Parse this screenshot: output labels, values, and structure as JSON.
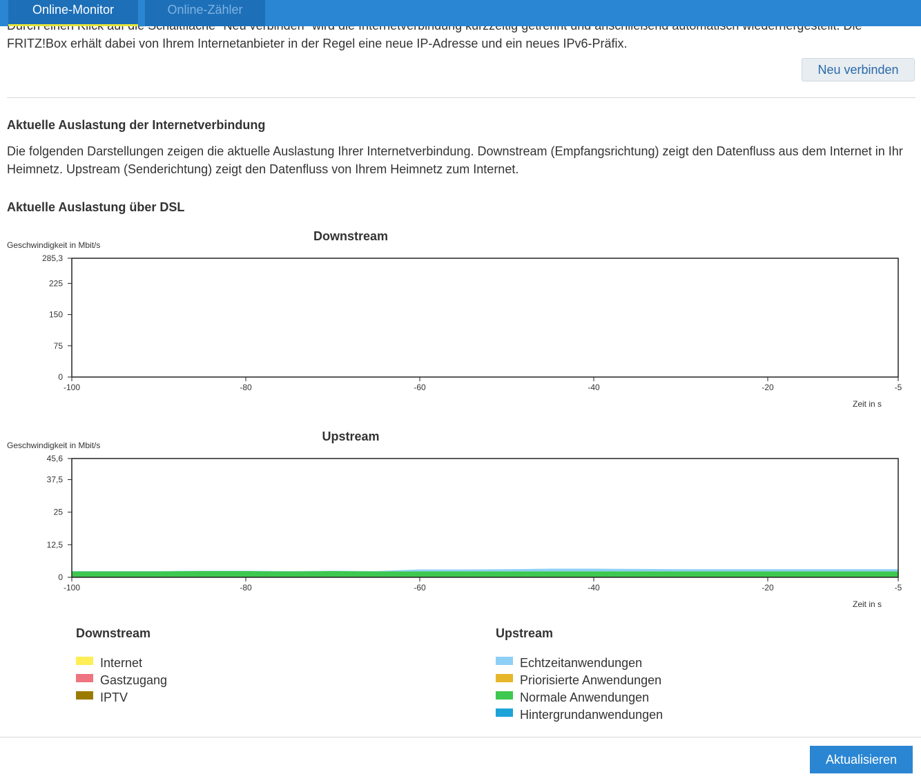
{
  "tabs": [
    {
      "label": "Online-Monitor",
      "active": true
    },
    {
      "label": "Online-Zähler",
      "active": false
    }
  ],
  "intro_text": "Durch einen Klick auf die Schaltfläche \"Neu verbinden\" wird die Internetverbindung kurzzeitig getrennt und anschließend automatisch wiederhergestellt. Die FRITZ!Box erhält dabei von Ihrem Internetanbieter in der Regel eine neue IP-Adresse und ein neues IPv6-Präfix.",
  "reconnect_button": "Neu verbinden",
  "section_title": "Aktuelle Auslastung der Internetverbindung",
  "section_desc": "Die folgenden Darstellungen zeigen die aktuelle Auslastung Ihrer Internetverbindung. Downstream (Empfangsrichtung) zeigt den Datenfluss aus dem Internet in Ihr Heimnetz. Upstream (Senderichtung) zeigt den Datenfluss von Ihrem Heimnetz zum Internet.",
  "dsl_title": "Aktuelle Auslastung über DSL",
  "chart_data": [
    {
      "type": "area",
      "title": "Downstream",
      "ylabel": "Geschwindigkeit in Mbit/s",
      "xlabel": "Zeit in s",
      "ylim": [
        0,
        285.3
      ],
      "xlim": [
        -100,
        -5
      ],
      "y_ticks": [
        "285,3",
        "225",
        "150",
        "75",
        "0"
      ],
      "y_tick_values": [
        285.3,
        225,
        150,
        75,
        0
      ],
      "x_ticks": [
        "-100",
        "-80",
        "-60",
        "-40",
        "-20",
        "-5"
      ],
      "x_tick_values": [
        -100,
        -80,
        -60,
        -40,
        -20,
        -5
      ],
      "x": [
        -100,
        -95,
        -90,
        -85,
        -80,
        -75,
        -70,
        -65,
        -60,
        -55,
        -50,
        -45,
        -40,
        -35,
        -30,
        -25,
        -20,
        -15,
        -10,
        -5
      ],
      "series": [
        {
          "name": "Internet",
          "color": "#ffee55",
          "values": [
            0.5,
            0.5,
            0.5,
            0.5,
            0.5,
            0.5,
            0.5,
            0.5,
            0.6,
            0.6,
            0.7,
            0.8,
            0.8,
            0.7,
            0.6,
            0.6,
            0.6,
            0.6,
            0.6,
            0.6
          ]
        },
        {
          "name": "Gastzugang",
          "color": "#ee7480",
          "values": [
            0,
            0,
            0,
            0,
            0,
            0,
            0,
            0,
            0,
            0,
            0,
            0,
            0,
            0,
            0,
            0,
            0,
            0,
            0,
            0
          ]
        },
        {
          "name": "IPTV",
          "color": "#9b7a00",
          "values": [
            0,
            0,
            0,
            0,
            0,
            0,
            0,
            0,
            0,
            0,
            0,
            0,
            0,
            0,
            0,
            0,
            0,
            0,
            0,
            0
          ]
        }
      ]
    },
    {
      "type": "area",
      "title": "Upstream",
      "ylabel": "Geschwindigkeit in Mbit/s",
      "xlabel": "Zeit in s",
      "ylim": [
        0,
        45.6
      ],
      "xlim": [
        -100,
        -5
      ],
      "y_ticks": [
        "45,6",
        "37,5",
        "25",
        "12,5",
        "0"
      ],
      "y_tick_values": [
        45.6,
        37.5,
        25,
        12.5,
        0
      ],
      "x_ticks": [
        "-100",
        "-80",
        "-60",
        "-40",
        "-20",
        "-5"
      ],
      "x_tick_values": [
        -100,
        -80,
        -60,
        -40,
        -20,
        -5
      ],
      "x": [
        -100,
        -95,
        -90,
        -85,
        -80,
        -75,
        -70,
        -65,
        -60,
        -55,
        -50,
        -45,
        -40,
        -35,
        -30,
        -25,
        -20,
        -15,
        -10,
        -5
      ],
      "series": [
        {
          "name": "Normale Anwendungen",
          "color": "#3ec84f",
          "values": [
            2.3,
            2.3,
            2.3,
            2.4,
            2.4,
            2.3,
            2.4,
            2.3,
            2.3,
            2.3,
            2.3,
            2.3,
            2.3,
            2.3,
            2.3,
            2.3,
            2.3,
            2.3,
            2.3,
            2.3
          ]
        },
        {
          "name": "Priorisierte Anwendungen",
          "color": "#e6b52a",
          "values": [
            0,
            0,
            0,
            0,
            0,
            0,
            0,
            0,
            0,
            0,
            0,
            0,
            0,
            0,
            0,
            0,
            0,
            0,
            0,
            0
          ]
        },
        {
          "name": "Hintergrundanwendungen",
          "color": "#1ea3d8",
          "values": [
            0,
            0,
            0,
            0,
            0,
            0,
            0,
            0,
            0,
            0,
            0,
            0,
            0,
            0,
            0,
            0,
            0,
            0,
            0,
            0
          ]
        },
        {
          "name": "Echtzeitanwendungen",
          "color": "#8ed0f5",
          "values": [
            0.1,
            0.1,
            0.1,
            0.1,
            0.1,
            0.1,
            0.1,
            0.1,
            0.7,
            0.7,
            0.8,
            1.0,
            1.0,
            0.9,
            0.8,
            0.8,
            0.8,
            0.8,
            0.8,
            0.8
          ]
        }
      ]
    }
  ],
  "legend": {
    "downstream_title": "Downstream",
    "downstream_items": [
      {
        "label": "Internet",
        "color": "#ffee55"
      },
      {
        "label": "Gastzugang",
        "color": "#ee7480"
      },
      {
        "label": "IPTV",
        "color": "#9b7a00"
      }
    ],
    "upstream_title": "Upstream",
    "upstream_items": [
      {
        "label": "Echtzeitanwendungen",
        "color": "#8ed0f5"
      },
      {
        "label": "Priorisierte Anwendungen",
        "color": "#e6b52a"
      },
      {
        "label": "Normale Anwendungen",
        "color": "#3ec84f"
      },
      {
        "label": "Hintergrundanwendungen",
        "color": "#1ea3d8"
      }
    ]
  },
  "refresh_button": "Aktualisieren"
}
